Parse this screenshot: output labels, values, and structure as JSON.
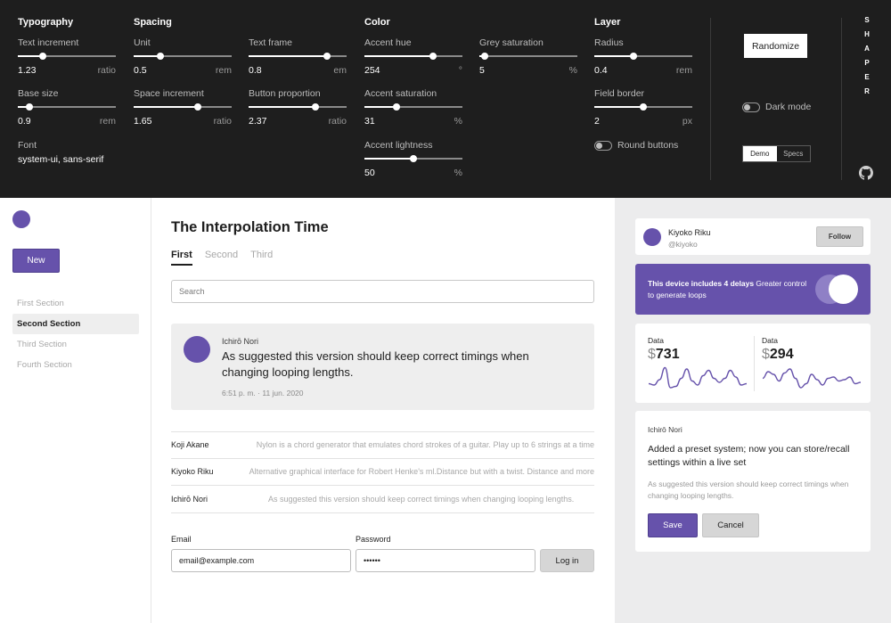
{
  "panel": {
    "groups": {
      "typography": "Typography",
      "spacing": "Spacing",
      "color": "Color",
      "layer": "Layer"
    },
    "controls": {
      "text_increment": {
        "label": "Text increment",
        "value": "1.23",
        "unit": "ratio",
        "level": 0.25
      },
      "base_size": {
        "label": "Base size",
        "value": "0.9",
        "unit": "rem",
        "level": 0.12
      },
      "unit": {
        "label": "Unit",
        "value": "0.5",
        "unit": "rem",
        "level": 0.27
      },
      "space_increment": {
        "label": "Space increment",
        "value": "1.65",
        "unit": "ratio",
        "level": 0.65
      },
      "text_frame": {
        "label": "Text frame",
        "value": "0.8",
        "unit": "em",
        "level": 0.8
      },
      "button_proportion": {
        "label": "Button proportion",
        "value": "2.37",
        "unit": "ratio",
        "level": 0.68
      },
      "accent_hue": {
        "label": "Accent hue",
        "value": "254",
        "unit": "°",
        "level": 0.7
      },
      "accent_saturation": {
        "label": "Accent saturation",
        "value": "31",
        "unit": "%",
        "level": 0.33
      },
      "accent_lightness": {
        "label": "Accent lightness",
        "value": "50",
        "unit": "%",
        "level": 0.5
      },
      "grey_saturation": {
        "label": "Grey saturation",
        "value": "5",
        "unit": "%",
        "level": 0.05
      },
      "radius": {
        "label": "Radius",
        "value": "0.4",
        "unit": "rem",
        "level": 0.4
      },
      "field_border": {
        "label": "Field border",
        "value": "2",
        "unit": "px",
        "level": 0.5
      }
    },
    "font": {
      "label": "Font",
      "value": "system-ui, sans-serif"
    },
    "round_buttons": {
      "label": "Round buttons",
      "on": false
    },
    "dark_mode": {
      "label": "Dark mode",
      "on": false
    },
    "randomize": "Randomize",
    "view_toggle": {
      "demo": "Demo",
      "specs": "Specs",
      "selected": "Demo"
    },
    "brand_letters": [
      "S",
      "H",
      "A",
      "P",
      "E",
      "R"
    ]
  },
  "sidebar": {
    "new_button": "New",
    "items": [
      "First Section",
      "Second Section",
      "Third Section",
      "Fourth Section"
    ],
    "active": "Second Section"
  },
  "main": {
    "title": "The Interpolation Time",
    "tabs": [
      "First",
      "Second",
      "Third"
    ],
    "active_tab": "First",
    "search_placeholder": "Search",
    "post": {
      "author": "Ichirō Nori",
      "message": "As suggested this version should keep correct timings when changing looping lengths.",
      "timestamp": "6:51 p. m. · 11 jun. 2020"
    },
    "rows": [
      {
        "name": "Koji Akane",
        "desc": "Nylon is a chord generator that emulates chord strokes of a guitar. Play up to 6 strings at a time"
      },
      {
        "name": "Kiyoko Riku",
        "desc": "Alternative graphical interface for Robert Henke's ml.Distance but with a twist. Distance and more"
      },
      {
        "name": "Ichirō Nori",
        "desc": "As suggested this version should keep correct timings when changing looping lengths."
      }
    ],
    "email_label": "Email",
    "email_value": "email@example.com",
    "password_label": "Password",
    "password_value": "••••••",
    "login_button": "Log in"
  },
  "right": {
    "profile": {
      "name": "Kiyoko Riku",
      "handle": "@kiyoko",
      "follow": "Follow"
    },
    "promo": {
      "bold": "This device includes 4 delays",
      "rest": " Greater control to generate loops"
    },
    "stats": [
      {
        "label": "Data",
        "currency": "$",
        "value": "731",
        "series": [
          0.35,
          0.3,
          0.5,
          0.95,
          0.2,
          0.25,
          0.55,
          0.9,
          0.45,
          0.3,
          0.65,
          0.85,
          0.55,
          0.4,
          0.55,
          0.85,
          0.6,
          0.3,
          0.35
        ]
      },
      {
        "label": "Data",
        "currency": "$",
        "value": "294",
        "series": [
          0.55,
          0.8,
          0.7,
          0.45,
          0.75,
          0.9,
          0.55,
          0.2,
          0.35,
          0.7,
          0.5,
          0.3,
          0.55,
          0.6,
          0.45,
          0.5,
          0.6,
          0.35,
          0.4
        ]
      }
    ],
    "form": {
      "author": "Ichirō Nori",
      "headline": "Added a preset system; now you can store/recall settings within a live set",
      "sub": "As suggested this version should keep correct timings when changing looping lengths.",
      "save": "Save",
      "cancel": "Cancel"
    }
  },
  "colors": {
    "accent": "#6652ab",
    "panel_bg": "#1e1e1e",
    "right_bg": "#ececed"
  }
}
